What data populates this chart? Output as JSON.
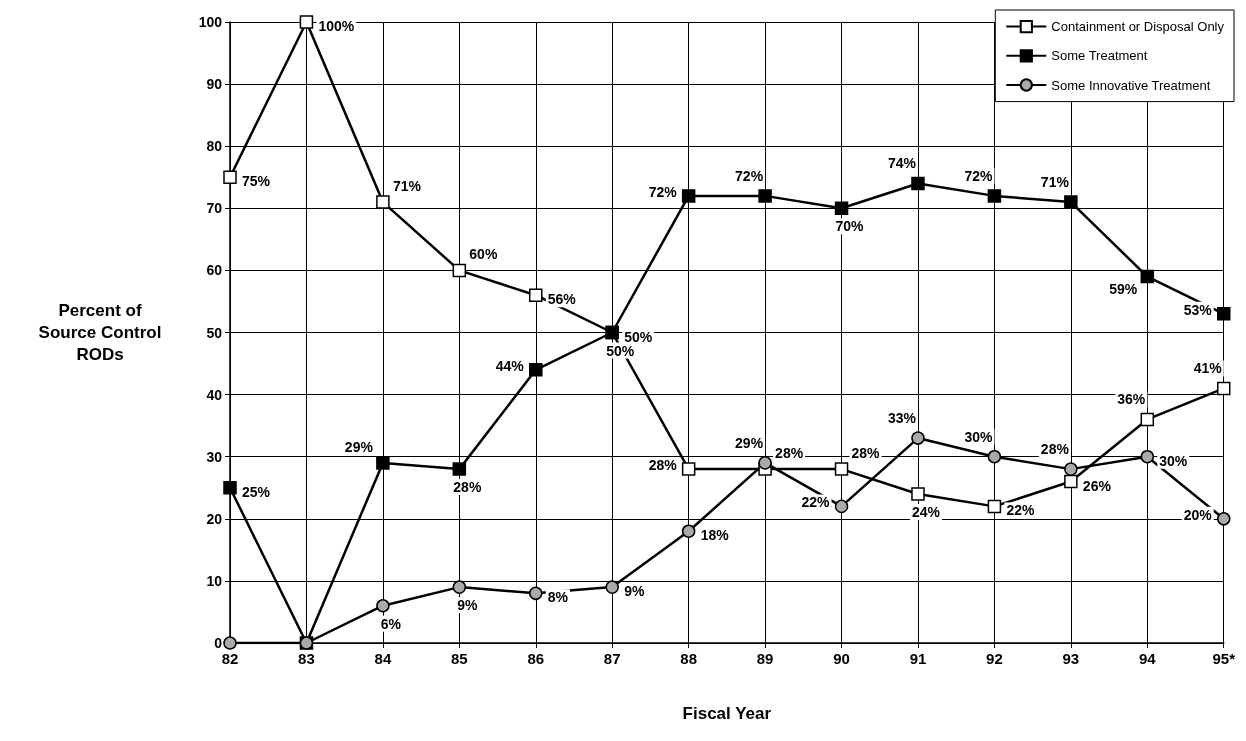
{
  "chart_data": {
    "type": "line",
    "xlabel": "Fiscal Year",
    "ylabel": "Percent of\nSource Control\nRODs",
    "categories": [
      "82",
      "83",
      "84",
      "85",
      "86",
      "87",
      "88",
      "89",
      "90",
      "91",
      "92",
      "93",
      "94",
      "95*"
    ],
    "ylim": [
      0,
      100
    ],
    "yticks": [
      0,
      10,
      20,
      30,
      40,
      50,
      60,
      70,
      80,
      90,
      100
    ],
    "grid": true,
    "legend": "top right",
    "series": [
      {
        "name": "Containment or Disposal Only",
        "color": "#000000",
        "marker": "square",
        "values": [
          75,
          100,
          71,
          60,
          56,
          50,
          28,
          28,
          28,
          24,
          22,
          26,
          36,
          41
        ],
        "value_labels": [
          "75%",
          "100%",
          "71%",
          "60%",
          "56%",
          "50%",
          "28%",
          "28%",
          "28%",
          "24%",
          "22%",
          "26%",
          "36%",
          "41%"
        ]
      },
      {
        "name": "Some Treatment",
        "color": "#000000",
        "marker": "square",
        "values": [
          25,
          0,
          29,
          28,
          44,
          50,
          72,
          72,
          70,
          74,
          72,
          71,
          59,
          53
        ],
        "value_labels": [
          "25%",
          null,
          "29%",
          "28%",
          "44%",
          "50%",
          "72%",
          "72%",
          "70%",
          "74%",
          "72%",
          "71%",
          "59%",
          "53%"
        ]
      },
      {
        "name": "Some Innovative Treatment",
        "color": "#000000",
        "marker": "circle",
        "values": [
          0,
          0,
          6,
          9,
          8,
          9,
          18,
          29,
          22,
          33,
          30,
          28,
          30,
          20
        ],
        "value_labels": [
          null,
          null,
          "6%",
          "9%",
          "8%",
          "9%",
          "18%",
          "29%",
          "22%",
          "33%",
          "30%",
          "28%",
          "30%",
          "20%"
        ]
      }
    ]
  }
}
